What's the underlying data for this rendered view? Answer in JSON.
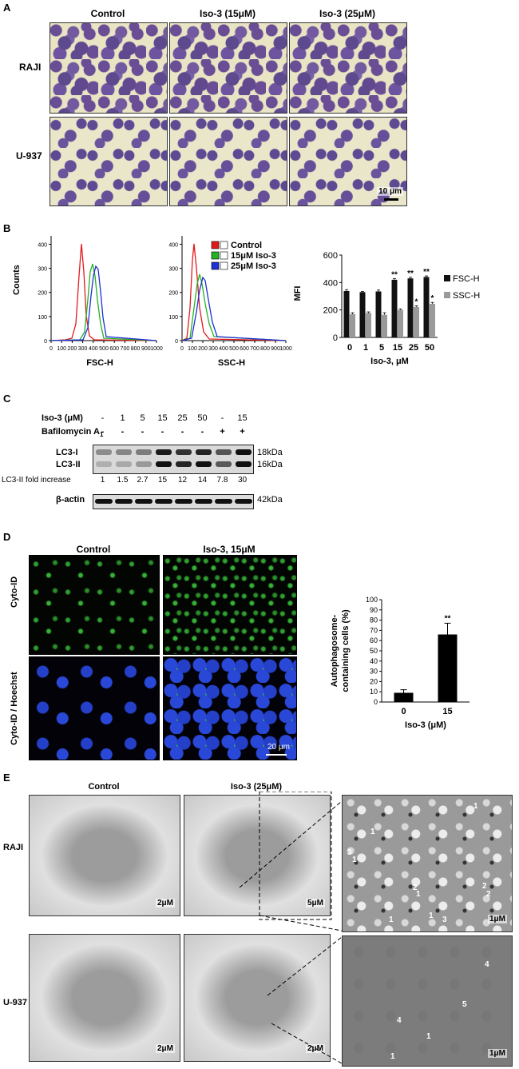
{
  "panel_a": {
    "letter": "A",
    "columns": [
      "Control",
      "Iso-3 (15μM)",
      "Iso-3 (25μM)"
    ],
    "rows": [
      "RAJI",
      "U-937"
    ],
    "scale_bar": "10 μm"
  },
  "panel_b": {
    "letter": "B",
    "hist_ylabel": "Counts",
    "fsc_xlabel": "FSC-H",
    "ssc_xlabel": "SSC-H",
    "legend": [
      "Control",
      "15μM Iso-3",
      "25μM Iso-3"
    ],
    "colors": {
      "control": "#e31a1c",
      "iso15": "#22b222",
      "iso25": "#1f2fd6"
    },
    "x_ticks": [
      "0",
      "100",
      "200",
      "300",
      "400",
      "500",
      "600",
      "700",
      "800",
      "900",
      "1000"
    ],
    "y_ticks": [
      "0",
      "100",
      "200",
      "300",
      "400"
    ],
    "chart_data": {
      "type": "bar",
      "title": "",
      "xlabel": "Iso-3, μM",
      "ylabel": "MFI",
      "categories": [
        "0",
        "1",
        "5",
        "15",
        "25",
        "50"
      ],
      "ylim": [
        0,
        600
      ],
      "y_ticks": [
        "0",
        "200",
        "400",
        "600"
      ],
      "series": [
        {
          "name": "FSC-H",
          "color": "#111111",
          "values": [
            338,
            330,
            335,
            420,
            430,
            440
          ],
          "errors": [
            10,
            5,
            10,
            8,
            8,
            8
          ],
          "stars": [
            "",
            "",
            "",
            "**",
            "**",
            "**"
          ]
        },
        {
          "name": "SSC-H",
          "color": "#9a9a9a",
          "values": [
            170,
            178,
            165,
            200,
            222,
            245
          ],
          "errors": [
            10,
            8,
            15,
            8,
            8,
            10
          ],
          "stars": [
            "",
            "",
            "",
            "",
            "*",
            "*"
          ]
        }
      ]
    }
  },
  "panel_c": {
    "letter": "C",
    "iso_label": "Iso-3 (μM)",
    "iso_values": [
      "-",
      "1",
      "5",
      "15",
      "25",
      "50",
      "-",
      "15"
    ],
    "baf_label": "Bafilomycin A",
    "baf_sub": "1",
    "baf_values": [
      "-",
      "-",
      "-",
      "-",
      "-",
      "-",
      "+",
      "+"
    ],
    "lc3i": "LC3-I",
    "lc3ii": "LC3-II",
    "kda_18": "18kDa",
    "kda_16": "16kDa",
    "fold_label": "LC3-II fold increase",
    "fold_values": [
      "1",
      "1.5",
      "2.7",
      "15",
      "12",
      "14",
      "7.8",
      "30"
    ],
    "actin": "β-actin",
    "kda_42": "42kDa"
  },
  "panel_d": {
    "letter": "D",
    "columns": [
      "Control",
      "Iso-3, 15μM"
    ],
    "rows": [
      "Cyto-ID",
      "Cyto-ID / Hoechst"
    ],
    "scale_bar": "20 μm",
    "chart_data": {
      "type": "bar",
      "title": "",
      "xlabel": "Iso-3 (μM)",
      "ylabel": "Autophagosome-containing cells (%)",
      "ylabel_lines": [
        "Autophagosome-",
        "containing cells (%)"
      ],
      "categories": [
        "0",
        "15"
      ],
      "values": [
        9,
        66
      ],
      "errors": [
        3,
        11
      ],
      "stars": [
        "",
        "**"
      ],
      "ylim": [
        0,
        100
      ],
      "y_ticks": [
        "0",
        "10",
        "20",
        "30",
        "40",
        "50",
        "60",
        "70",
        "80",
        "90",
        "100"
      ]
    }
  },
  "panel_e": {
    "letter": "E",
    "columns": [
      "Control",
      "Iso-3 (25μM)"
    ],
    "rows": [
      "RAJI",
      "U-937"
    ],
    "scale_2": "2μM",
    "scale_5": "5μM",
    "scale_1": "1μM",
    "raji_marks": [
      "1",
      "1",
      "1",
      "1",
      "1",
      "1",
      "2",
      "2",
      "2",
      "3",
      "3"
    ],
    "u937_marks": [
      "4",
      "4",
      "5",
      "1",
      "1"
    ]
  }
}
